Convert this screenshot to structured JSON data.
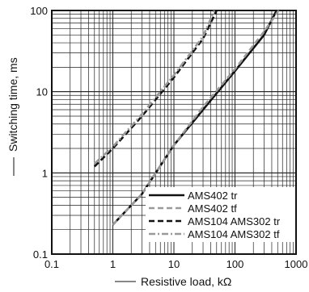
{
  "chart_data": {
    "type": "line",
    "xlabel": "Resistive load, kΩ",
    "ylabel": "Switching time, ms",
    "x_scale": "log",
    "y_scale": "log",
    "xlim": [
      0.1,
      1000
    ],
    "ylim": [
      0.1,
      100
    ],
    "x_ticks": [
      "0.1",
      "1",
      "10",
      "100",
      "1000"
    ],
    "y_ticks": [
      "0.1",
      "1",
      "10",
      "100"
    ],
    "grid": true,
    "legend_position": "bottom-right",
    "series": [
      {
        "name": "AMS402 tr",
        "style": "solid",
        "color": "#111111",
        "points": [
          [
            1.0,
            0.23
          ],
          [
            3.0,
            0.55
          ],
          [
            10,
            2.2
          ],
          [
            30,
            6.0
          ],
          [
            100,
            18.0
          ],
          [
            300,
            50.0
          ],
          [
            480,
            100.0
          ]
        ]
      },
      {
        "name": "AMS402 tf",
        "style": "dashed",
        "color": "#9a9a9a",
        "points": [
          [
            1.0,
            0.23
          ],
          [
            3.0,
            0.55
          ],
          [
            10,
            2.2
          ],
          [
            30,
            6.5
          ],
          [
            100,
            19.0
          ],
          [
            300,
            55.0
          ],
          [
            520,
            100.0
          ]
        ]
      },
      {
        "name": "AMS104 AMS302 tr",
        "style": "dashed",
        "color": "#111111",
        "points": [
          [
            0.5,
            1.2
          ],
          [
            1.0,
            2.0
          ],
          [
            3.0,
            5.0
          ],
          [
            10,
            15.0
          ],
          [
            30,
            45.0
          ],
          [
            50,
            100.0
          ]
        ]
      },
      {
        "name": "AMS104 AMS302 tf",
        "style": "dashdot",
        "color": "#9a9a9a",
        "points": [
          [
            0.5,
            1.3
          ],
          [
            1.0,
            2.1
          ],
          [
            3.0,
            5.3
          ],
          [
            10,
            16.0
          ],
          [
            30,
            48.0
          ],
          [
            46,
            100.0
          ]
        ]
      }
    ]
  }
}
